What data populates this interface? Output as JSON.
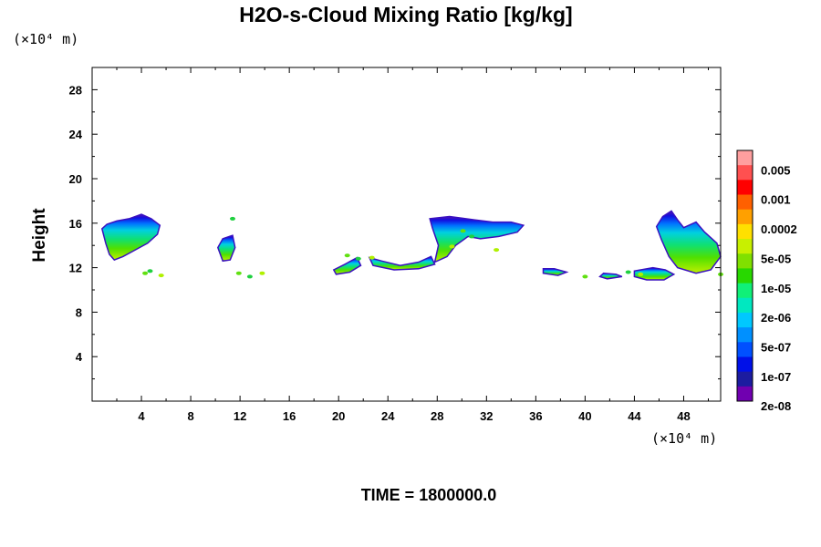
{
  "chart_data": {
    "type": "contour",
    "title": "H2O-s-Cloud Mixing Ratio [kg/kg]",
    "ylabel": "Height",
    "xlabel": "",
    "x_unit": "(×10⁴ m)",
    "y_unit": "(×10⁴ m)",
    "xlim": [
      0,
      51
    ],
    "ylim": [
      0,
      30
    ],
    "x_ticks": [
      4,
      8,
      12,
      16,
      20,
      24,
      28,
      32,
      36,
      40,
      44,
      48
    ],
    "y_ticks": [
      4,
      8,
      12,
      16,
      20,
      24,
      28
    ],
    "x_tick_labels": [
      "4",
      "8",
      "12",
      "16",
      "20",
      "24",
      "28",
      "32",
      "36",
      "40",
      "44",
      "48"
    ],
    "y_tick_labels": [
      "4",
      "8",
      "12",
      "16",
      "20",
      "24",
      "28"
    ],
    "legend": {
      "labels": [
        "0.005",
        "0.001",
        "0.0002",
        "5e-05",
        "1e-05",
        "2e-06",
        "5e-07",
        "1e-07",
        "2e-08"
      ],
      "colors": [
        "#ff9f9f",
        "#ff5050",
        "#ff0000",
        "#ff6000",
        "#ffa000",
        "#ffe000",
        "#c8f000",
        "#80e000",
        "#28d800",
        "#10f078",
        "#00e8c0",
        "#00c8ff",
        "#0090ff",
        "#0050ff",
        "#0010e8",
        "#1c1ca0",
        "#7000b0"
      ]
    },
    "cloud_regions": [
      {
        "name": "cloud-a",
        "poly": [
          [
            0.8,
            15.5
          ],
          [
            1.2,
            15.9
          ],
          [
            2,
            16.2
          ],
          [
            3,
            16.4
          ],
          [
            4,
            16.8
          ],
          [
            4.8,
            16.4
          ],
          [
            5.5,
            15.8
          ],
          [
            5.3,
            15
          ],
          [
            4.5,
            14.2
          ],
          [
            3.5,
            13.6
          ],
          [
            2.5,
            13
          ],
          [
            1.8,
            12.7
          ],
          [
            1.4,
            13.2
          ],
          [
            1.1,
            14.2
          ]
        ]
      },
      {
        "name": "cloud-b",
        "poly": [
          [
            10.2,
            13.8
          ],
          [
            10.6,
            14.6
          ],
          [
            11.4,
            14.9
          ],
          [
            11.6,
            13.8
          ],
          [
            11.2,
            12.7
          ],
          [
            10.6,
            12.6
          ]
        ]
      },
      {
        "name": "cloud-c",
        "poly": [
          [
            27.4,
            16.4
          ],
          [
            29,
            16.6
          ],
          [
            31,
            16.3
          ],
          [
            32.5,
            16.1
          ],
          [
            34,
            16.1
          ],
          [
            35,
            15.8
          ],
          [
            34.5,
            15.2
          ],
          [
            33,
            14.8
          ],
          [
            31.5,
            14.6
          ],
          [
            30.5,
            14.8
          ],
          [
            29.5,
            14
          ],
          [
            28.8,
            13
          ],
          [
            27.8,
            12.5
          ],
          [
            28.1,
            14
          ],
          [
            27.6,
            15.6
          ]
        ]
      },
      {
        "name": "cloud-d",
        "poly": [
          [
            45.8,
            15.7
          ],
          [
            46.3,
            16.6
          ],
          [
            47,
            17.1
          ],
          [
            47.5,
            16.3
          ],
          [
            48,
            15.6
          ],
          [
            49,
            16.1
          ],
          [
            49.7,
            15.2
          ],
          [
            50.7,
            14.2
          ],
          [
            51,
            13
          ],
          [
            50.2,
            11.8
          ],
          [
            49,
            11.5
          ],
          [
            47.5,
            12
          ],
          [
            46.8,
            13
          ],
          [
            46.2,
            14.5
          ]
        ]
      },
      {
        "name": "cloud-e",
        "poly": [
          [
            22.5,
            12.9
          ],
          [
            23.5,
            12.6
          ],
          [
            25,
            12.2
          ],
          [
            26.5,
            12.5
          ],
          [
            27.5,
            13
          ],
          [
            27.8,
            12.3
          ],
          [
            26.5,
            11.9
          ],
          [
            24.5,
            11.8
          ],
          [
            22.8,
            12.2
          ]
        ]
      },
      {
        "name": "cloud-f",
        "poly": [
          [
            19.6,
            11.8
          ],
          [
            20.5,
            12.3
          ],
          [
            21.5,
            12.9
          ],
          [
            21.8,
            12.2
          ],
          [
            20.9,
            11.6
          ],
          [
            19.8,
            11.4
          ]
        ]
      },
      {
        "name": "cloud-g",
        "poly": [
          [
            36.6,
            11.9
          ],
          [
            37.5,
            11.9
          ],
          [
            38.5,
            11.6
          ],
          [
            37.8,
            11.3
          ],
          [
            36.6,
            11.5
          ]
        ]
      },
      {
        "name": "cloud-h",
        "poly": [
          [
            41.5,
            11.5
          ],
          [
            42.5,
            11.4
          ],
          [
            43,
            11.2
          ],
          [
            41.8,
            11
          ],
          [
            41.2,
            11.2
          ]
        ]
      },
      {
        "name": "cloud-i",
        "poly": [
          [
            44,
            11.7
          ],
          [
            45.5,
            12
          ],
          [
            46.5,
            11.8
          ],
          [
            47.2,
            11.4
          ],
          [
            46.4,
            10.9
          ],
          [
            45,
            10.9
          ],
          [
            44,
            11.2
          ]
        ]
      }
    ],
    "small_patches": [
      [
        4.3,
        11.5
      ],
      [
        4.7,
        11.7
      ],
      [
        5.6,
        11.3
      ],
      [
        11.9,
        11.5
      ],
      [
        12.8,
        11.2
      ],
      [
        13.8,
        11.5
      ],
      [
        20.7,
        13.1
      ],
      [
        21.6,
        12.8
      ],
      [
        29.2,
        13.9
      ],
      [
        30.1,
        15.3
      ],
      [
        30.8,
        14.8
      ],
      [
        32.8,
        13.6
      ],
      [
        40,
        11.2
      ],
      [
        43.5,
        11.6
      ],
      [
        44.5,
        11.4
      ],
      [
        51,
        11.4
      ],
      [
        11.4,
        16.4
      ],
      [
        22.7,
        12.9
      ]
    ]
  },
  "footer": {
    "label": "TIME = 1800000.0"
  }
}
